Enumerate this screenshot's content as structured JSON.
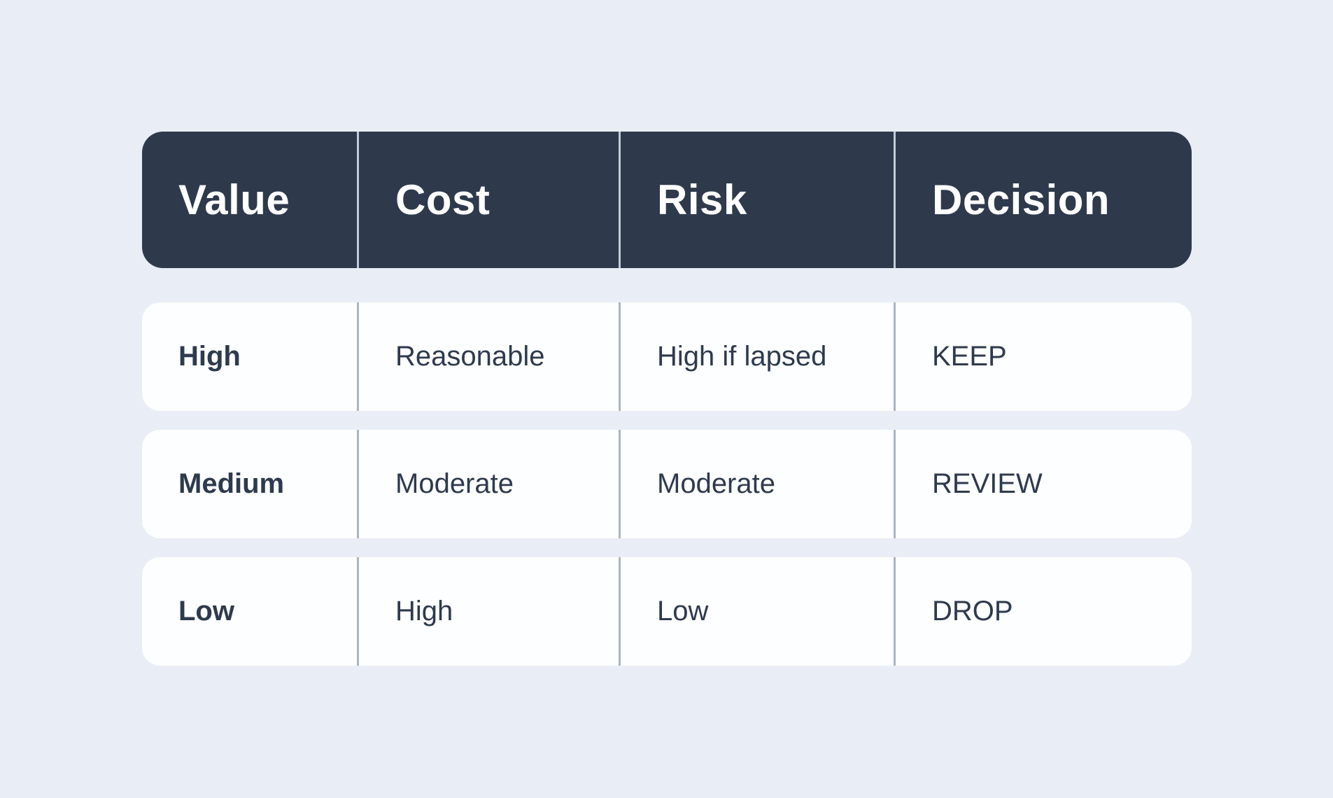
{
  "chart_data": {
    "type": "table",
    "columns": [
      "Value",
      "Cost",
      "Risk",
      "Decision"
    ],
    "rows": [
      [
        "High",
        "Reasonable",
        "High if lapsed",
        "KEEP"
      ],
      [
        "Medium",
        "Moderate",
        "Moderate",
        "REVIEW"
      ],
      [
        "Low",
        "High",
        "Low",
        "DROP"
      ]
    ]
  },
  "colors": {
    "background": "#e9eef6",
    "header_bg": "#2e3a4b",
    "header_text": "#ffffff",
    "header_divider": "#c2ccd6",
    "row_bg": "#fdfeff",
    "row_divider": "#a9b6c3",
    "text": "#2e3a4d"
  }
}
